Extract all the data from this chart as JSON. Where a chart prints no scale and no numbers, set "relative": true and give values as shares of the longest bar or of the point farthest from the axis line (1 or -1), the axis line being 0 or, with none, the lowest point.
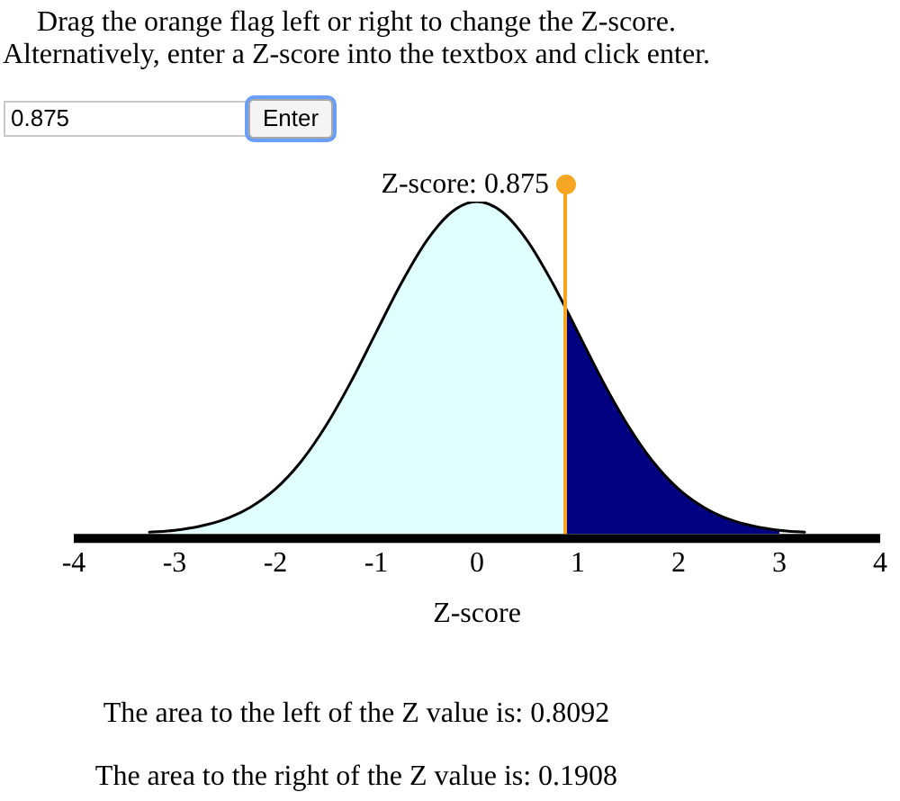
{
  "chart_data": {
    "type": "area",
    "title": "Drag the orange flag left or right to change the Z-score.",
    "subtitle": "Alternatively, enter a Z-score into the textbox and click enter.",
    "xlabel": "Z-score",
    "relative": true,
    "xlim": [
      -4,
      4
    ],
    "xticks": [
      -4,
      -3,
      -2,
      -1,
      0,
      1,
      2,
      3,
      4
    ],
    "series": [
      {
        "color": "#e0ffff",
        "x": [
          -3,
          -2.75,
          -2.5,
          -2.25,
          -2,
          -1.75,
          -1.5,
          -1.25,
          -1,
          -0.75,
          -0.5,
          -0.25,
          0,
          0.25,
          0.5,
          0.75,
          0.875
        ],
        "values": [
          0.011,
          0.023,
          0.044,
          0.08,
          0.135,
          0.216,
          0.325,
          0.458,
          0.607,
          0.755,
          0.882,
          0.969,
          1,
          0.969,
          0.882,
          0.755,
          0.682
        ]
      },
      {
        "color": "#000080",
        "x": [
          0.875,
          1,
          1.25,
          1.5,
          1.75,
          2,
          2.25,
          2.5,
          2.75,
          3
        ],
        "values": [
          0.682,
          0.607,
          0.458,
          0.325,
          0.216,
          0.135,
          0.08,
          0.044,
          0.023,
          0.011
        ]
      },
      {
        "type": "line",
        "color": "#000000",
        "x": [
          -3.25,
          -3,
          -2.75,
          -2.5,
          -2.25,
          -2,
          -1.75,
          -1.5,
          -1.25,
          -1,
          -0.75,
          -0.5,
          -0.25,
          0,
          0.25,
          0.5,
          0.75,
          0.875,
          1,
          1.25,
          1.5,
          1.75,
          2,
          2.25,
          2.5,
          2.75,
          3,
          3.25
        ],
        "values": [
          0.005,
          0.011,
          0.023,
          0.044,
          0.08,
          0.135,
          0.216,
          0.325,
          0.458,
          0.607,
          0.755,
          0.882,
          0.969,
          1,
          0.969,
          0.882,
          0.755,
          0.682,
          0.607,
          0.458,
          0.325,
          0.216,
          0.135,
          0.08,
          0.044,
          0.023,
          0.011,
          0.005
        ]
      }
    ],
    "ref_lines": [
      {
        "axis": "x",
        "value": 0.875,
        "label": "Z-score: 0.875",
        "color": "#f6a623"
      }
    ],
    "annotations": [
      "0.875",
      "Enter",
      "The area to the left of the Z value is: 0.8092",
      "The area to the right of the Z value is: 0.1908"
    ]
  }
}
